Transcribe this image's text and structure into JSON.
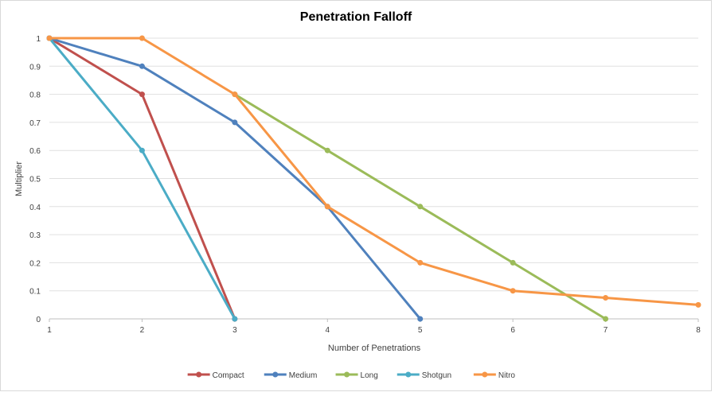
{
  "chart_data": {
    "type": "line",
    "title": "Penetration Falloff",
    "xlabel": "Number of Penetrations",
    "ylabel": "Multiplier",
    "xlim": [
      1,
      8
    ],
    "ylim": [
      0,
      1
    ],
    "x_ticks": [
      "1",
      "2",
      "3",
      "4",
      "5",
      "6",
      "7",
      "8"
    ],
    "y_ticks": [
      "0",
      "0.1",
      "0.2",
      "0.3",
      "0.4",
      "0.5",
      "0.6",
      "0.7",
      "0.8",
      "0.9",
      "1"
    ],
    "grid": "horizontal",
    "legend_position": "bottom",
    "series": [
      {
        "name": "Compact",
        "color": "#c0504d",
        "points": [
          [
            1,
            1
          ],
          [
            2,
            0.8
          ],
          [
            3,
            0
          ]
        ]
      },
      {
        "name": "Medium",
        "color": "#4f81bd",
        "points": [
          [
            1,
            1
          ],
          [
            2,
            0.9
          ],
          [
            3,
            0.7
          ],
          [
            4,
            0.4
          ],
          [
            5,
            0
          ]
        ]
      },
      {
        "name": "Long",
        "color": "#9bbb59",
        "points": [
          [
            3,
            0.8
          ],
          [
            4,
            0.6
          ],
          [
            5,
            0.4
          ],
          [
            6,
            0.2
          ],
          [
            7,
            0
          ]
        ]
      },
      {
        "name": "Shotgun",
        "color": "#4bacc6",
        "points": [
          [
            1,
            1
          ],
          [
            2,
            0.6
          ],
          [
            3,
            0
          ]
        ]
      },
      {
        "name": "Nitro",
        "color": "#f79646",
        "points": [
          [
            1,
            1
          ],
          [
            2,
            1
          ],
          [
            3,
            0.8
          ],
          [
            4,
            0.4
          ],
          [
            5,
            0.2
          ],
          [
            6,
            0.1
          ],
          [
            7,
            0.075
          ],
          [
            8,
            0.05
          ]
        ]
      }
    ]
  }
}
